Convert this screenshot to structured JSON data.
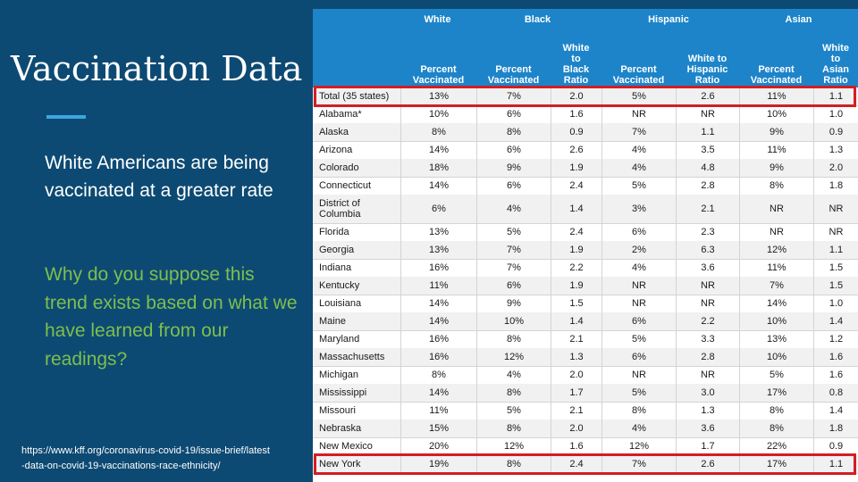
{
  "slide": {
    "title": "Vaccination Data",
    "statement": "White Americans are being vaccinated at a greater rate",
    "question": "Why do you suppose this trend exists based on what we have learned from our readings?",
    "source": "https://www.kff.org/coronavirus-covid-19/issue-brief/latest-data-on-covid-19-vaccinations-race-ethnicity/"
  },
  "colors": {
    "background": "#0d4a73",
    "accent": "#3aa7e0",
    "question_text": "#7dbf4e",
    "table_header": "#1d84c9",
    "highlight": "#d21e24"
  },
  "table": {
    "groups": [
      "White",
      "Black",
      "Hispanic",
      "Asian"
    ],
    "columns": [
      [
        "Percent",
        "Vaccinated"
      ],
      [
        "Percent",
        "Vaccinated"
      ],
      [
        "White",
        "to",
        "Black",
        "Ratio"
      ],
      [
        "Percent",
        "Vaccinated"
      ],
      [
        "White to",
        "Hispanic",
        "Ratio"
      ],
      [
        "Percent",
        "Vaccinated"
      ],
      [
        "White",
        "to",
        "Asian",
        "Ratio"
      ]
    ],
    "rows": [
      {
        "state": "Total (35 states)",
        "cells": [
          "13%",
          "7%",
          "2.0",
          "5%",
          "2.6",
          "11%",
          "1.1"
        ],
        "highlighted": true
      },
      {
        "state": "Alabama*",
        "cells": [
          "10%",
          "6%",
          "1.6",
          "NR",
          "NR",
          "10%",
          "1.0"
        ]
      },
      {
        "state": "Alaska",
        "cells": [
          "8%",
          "8%",
          "0.9",
          "7%",
          "1.1",
          "9%",
          "0.9"
        ]
      },
      {
        "state": "Arizona",
        "cells": [
          "14%",
          "6%",
          "2.6",
          "4%",
          "3.5",
          "11%",
          "1.3"
        ]
      },
      {
        "state": "Colorado",
        "cells": [
          "18%",
          "9%",
          "1.9",
          "4%",
          "4.8",
          "9%",
          "2.0"
        ]
      },
      {
        "state": "Connecticut",
        "cells": [
          "14%",
          "6%",
          "2.4",
          "5%",
          "2.8",
          "8%",
          "1.8"
        ]
      },
      {
        "state": "District of Columbia",
        "cells": [
          "6%",
          "4%",
          "1.4",
          "3%",
          "2.1",
          "NR",
          "NR"
        ],
        "tall": true
      },
      {
        "state": "Florida",
        "cells": [
          "13%",
          "5%",
          "2.4",
          "6%",
          "2.3",
          "NR",
          "NR"
        ]
      },
      {
        "state": "Georgia",
        "cells": [
          "13%",
          "7%",
          "1.9",
          "2%",
          "6.3",
          "12%",
          "1.1"
        ]
      },
      {
        "state": "Indiana",
        "cells": [
          "16%",
          "7%",
          "2.2",
          "4%",
          "3.6",
          "11%",
          "1.5"
        ]
      },
      {
        "state": "Kentucky",
        "cells": [
          "11%",
          "6%",
          "1.9",
          "NR",
          "NR",
          "7%",
          "1.5"
        ]
      },
      {
        "state": "Louisiana",
        "cells": [
          "14%",
          "9%",
          "1.5",
          "NR",
          "NR",
          "14%",
          "1.0"
        ]
      },
      {
        "state": "Maine",
        "cells": [
          "14%",
          "10%",
          "1.4",
          "6%",
          "2.2",
          "10%",
          "1.4"
        ]
      },
      {
        "state": "Maryland",
        "cells": [
          "16%",
          "8%",
          "2.1",
          "5%",
          "3.3",
          "13%",
          "1.2"
        ]
      },
      {
        "state": "Massachusetts",
        "cells": [
          "16%",
          "12%",
          "1.3",
          "6%",
          "2.8",
          "10%",
          "1.6"
        ]
      },
      {
        "state": "Michigan",
        "cells": [
          "8%",
          "4%",
          "2.0",
          "NR",
          "NR",
          "5%",
          "1.6"
        ]
      },
      {
        "state": "Mississippi",
        "cells": [
          "14%",
          "8%",
          "1.7",
          "5%",
          "3.0",
          "17%",
          "0.8"
        ]
      },
      {
        "state": "Missouri",
        "cells": [
          "11%",
          "5%",
          "2.1",
          "8%",
          "1.3",
          "8%",
          "1.4"
        ]
      },
      {
        "state": "Nebraska",
        "cells": [
          "15%",
          "8%",
          "2.0",
          "4%",
          "3.6",
          "8%",
          "1.8"
        ]
      },
      {
        "state": "New Mexico",
        "cells": [
          "20%",
          "12%",
          "1.6",
          "12%",
          "1.7",
          "22%",
          "0.9"
        ]
      },
      {
        "state": "New York",
        "cells": [
          "19%",
          "8%",
          "2.4",
          "7%",
          "2.6",
          "17%",
          "1.1"
        ],
        "highlighted": true
      }
    ]
  }
}
